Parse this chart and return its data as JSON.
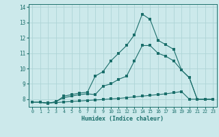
{
  "xlabel": "Humidex (Indice chaleur)",
  "bg_color": "#cce9eb",
  "grid_color": "#aed4d6",
  "line_color": "#1a6e6a",
  "xlim": [
    -0.5,
    23.5
  ],
  "ylim": [
    7.5,
    14.2
  ],
  "yticks": [
    8,
    9,
    10,
    11,
    12,
    13,
    14
  ],
  "xticks": [
    0,
    1,
    2,
    3,
    4,
    5,
    6,
    7,
    8,
    9,
    10,
    11,
    12,
    13,
    14,
    15,
    16,
    17,
    18,
    19,
    20,
    21,
    22,
    23
  ],
  "line1_x": [
    0,
    1,
    2,
    3,
    4,
    5,
    6,
    7,
    8,
    9,
    10,
    11,
    12,
    13,
    14,
    15,
    16,
    17,
    18,
    19,
    20,
    21,
    22,
    23
  ],
  "line1_y": [
    7.8,
    7.8,
    7.75,
    7.78,
    7.82,
    7.85,
    7.88,
    7.92,
    7.95,
    7.98,
    8.02,
    8.05,
    8.1,
    8.15,
    8.2,
    8.25,
    8.3,
    8.35,
    8.42,
    8.5,
    8.0,
    8.0,
    8.0,
    8.0
  ],
  "line2_x": [
    0,
    1,
    2,
    3,
    4,
    5,
    6,
    7,
    8,
    9,
    10,
    11,
    12,
    13,
    14,
    15,
    16,
    17,
    18,
    19,
    20,
    21,
    22,
    23
  ],
  "line2_y": [
    7.8,
    7.8,
    7.72,
    7.85,
    8.1,
    8.2,
    8.3,
    8.35,
    8.3,
    8.85,
    9.0,
    9.3,
    9.5,
    10.5,
    11.5,
    11.5,
    11.0,
    10.8,
    10.5,
    9.9,
    9.4,
    8.0,
    8.0,
    8.0
  ],
  "line3_x": [
    0,
    1,
    2,
    3,
    4,
    5,
    6,
    7,
    8,
    9,
    10,
    11,
    12,
    13,
    14,
    15,
    16,
    17,
    18,
    19,
    20,
    21,
    22,
    23
  ],
  "line3_y": [
    7.8,
    7.8,
    7.75,
    7.82,
    8.2,
    8.3,
    8.4,
    8.45,
    9.5,
    9.8,
    10.5,
    11.0,
    11.5,
    12.2,
    13.55,
    13.2,
    11.85,
    11.55,
    11.25,
    9.9,
    9.4,
    8.0,
    8.0,
    8.0
  ]
}
